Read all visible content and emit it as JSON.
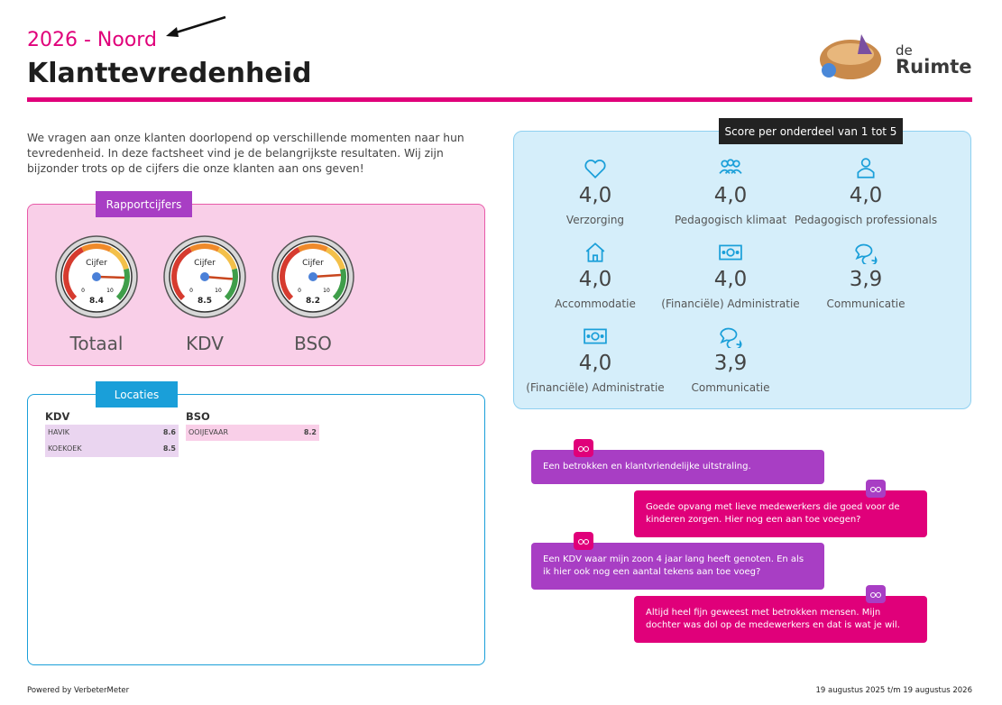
{
  "header": {
    "subtitle": "2026 - Noord",
    "title": "Klanttevredenheid",
    "logo": {
      "small": "de",
      "big": "Ruimte"
    }
  },
  "intro": "We vragen aan onze klanten doorlopend op verschillende momenten naar hun tevredenheid. In deze factsheet vind je de belangrijkste resultaten. Wij zijn bijzonder trots op de cijfers die onze klanten aan ons geven!",
  "rapportcijfers": {
    "title": "Rapportcijfers",
    "gauge_label": "Cijfer",
    "min": 0,
    "max": 10,
    "gauges": [
      {
        "name": "Totaal",
        "value": 8.4
      },
      {
        "name": "KDV",
        "value": 8.5
      },
      {
        "name": "BSO",
        "value": 8.2
      }
    ]
  },
  "locaties": {
    "title": "Locaties",
    "groups": [
      {
        "name": "KDV",
        "rows": [
          {
            "name": "HAVIK",
            "value": 8.6
          },
          {
            "name": "KOEKOEK",
            "value": 8.5
          }
        ]
      },
      {
        "name": "BSO",
        "rows": [
          {
            "name": "OOIJEVAAR",
            "value": 8.2
          }
        ]
      }
    ]
  },
  "scores": {
    "title": "Score per onderdeel van 1 tot 5",
    "items": [
      {
        "score": "4,0",
        "label": "Verzorging"
      },
      {
        "score": "4,0",
        "label": "Pedagogisch klimaat"
      },
      {
        "score": "4,0",
        "label": "Pedagogisch professionals"
      },
      {
        "score": "4,0",
        "label": "Accommodatie"
      },
      {
        "score": "4,0",
        "label": "(Financiële) Administratie"
      },
      {
        "score": "3,9",
        "label": "Communicatie"
      },
      {
        "score": "4,0",
        "label": "(Financiële) Administratie"
      },
      {
        "score": "3,9",
        "label": "Communicatie"
      }
    ]
  },
  "quotes": [
    "Een betrokken en klantvriendelijke uitstraling.",
    "Goede opvang met lieve medewerkers die goed voor de kinderen zorgen. Hier nog een aan toe voegen?",
    "Een KDV waar mijn zoon 4 jaar lang heeft genoten. En als ik hier ook nog een aantal tekens aan toe voeg?",
    "Altijd heel fijn geweest met betrokken mensen. Mijn dochter was dol op de medewerkers en dat is wat je wil."
  ],
  "footer": {
    "left": "Powered by VerbeterMeter",
    "right": "19 augustus 2025 t/m 19 augustus 2026"
  }
}
